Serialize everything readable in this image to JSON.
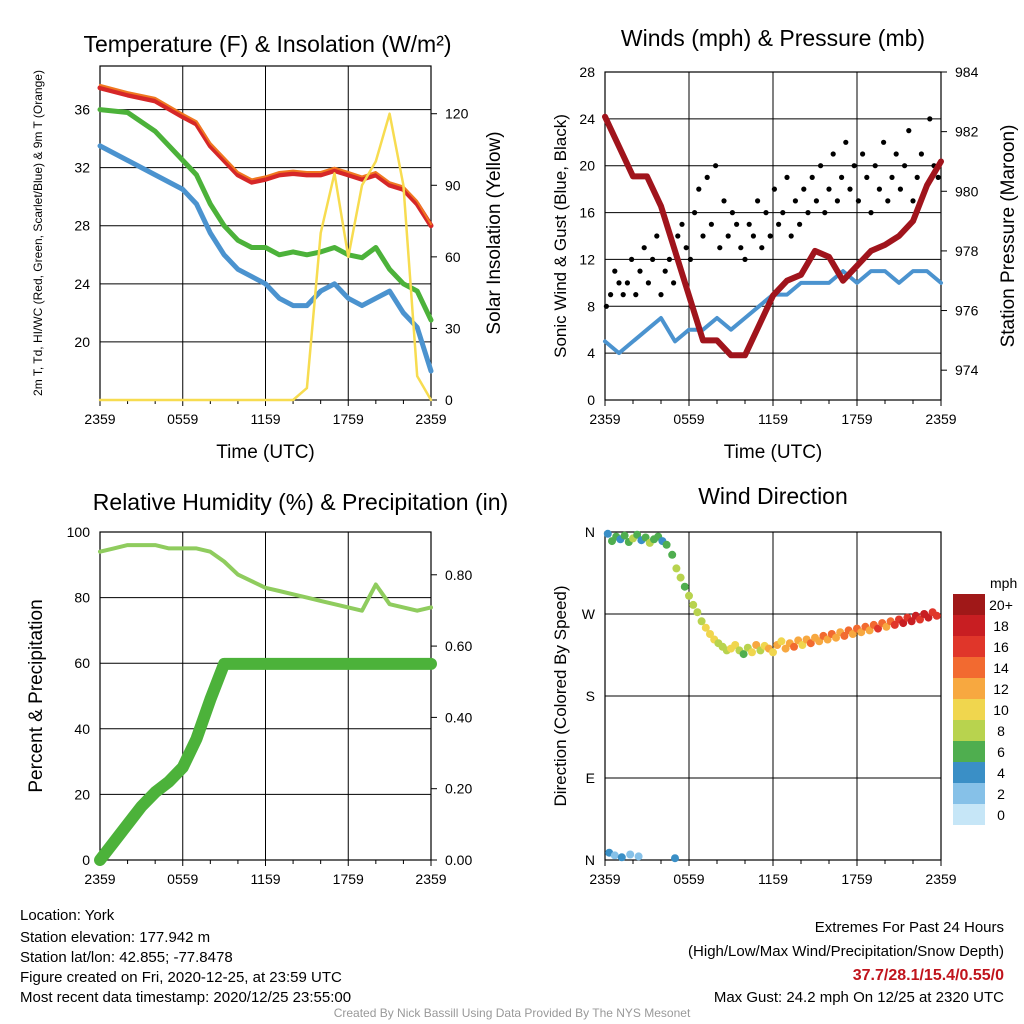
{
  "chart_data": [
    {
      "type": "line",
      "title": "Temperature (F) & Insolation (W/m²)",
      "xlabel": "Time (UTC)",
      "ylabel": "2m T, Td, HI/WC (Red, Green, Scarlet/Blue) & 9m T (Orange)",
      "y2label": "Solar Insolation (Yellow)",
      "x_ticks": [
        "2359",
        "0559",
        "1159",
        "1759",
        "2359"
      ],
      "ylim": [
        16,
        39
      ],
      "y_ticks": [
        20,
        24,
        28,
        32,
        36
      ],
      "y2lim": [
        0,
        140
      ],
      "y2_ticks": [
        0,
        30,
        60,
        90,
        120
      ],
      "x_hours": [
        0,
        2,
        4,
        6,
        7,
        8,
        9,
        10,
        11,
        12,
        13,
        14,
        15,
        16,
        17,
        18,
        19,
        20,
        21,
        22,
        23,
        24
      ],
      "series": [
        {
          "color": "#d62728",
          "axis": "left",
          "values": [
            37.5,
            37,
            36.6,
            35.5,
            35,
            33.5,
            32.5,
            31.5,
            31,
            31.2,
            31.5,
            31.6,
            31.5,
            31.5,
            31.8,
            31.5,
            31.2,
            31.5,
            30.8,
            30.5,
            29.5,
            28
          ]
        },
        {
          "color": "#f07820",
          "axis": "left",
          "values": [
            37.7,
            37.2,
            36.8,
            35.7,
            35.2,
            33.7,
            32.7,
            31.7,
            31.2,
            31.4,
            31.7,
            31.8,
            31.7,
            31.7,
            32,
            31.7,
            31.4,
            31.7,
            31,
            30.7,
            29.7,
            28.1
          ]
        },
        {
          "color": "#4cb23a",
          "axis": "left",
          "values": [
            36,
            35.8,
            34.5,
            32.5,
            31.5,
            29.5,
            28,
            27,
            26.5,
            26.5,
            26,
            26.2,
            26,
            26.2,
            26.5,
            26,
            25.8,
            26.5,
            25,
            24,
            23.5,
            21.5
          ]
        },
        {
          "color": "#4b93cf",
          "axis": "left",
          "values": [
            33.5,
            32.5,
            31.5,
            30.5,
            29.5,
            27.5,
            26,
            25,
            24.5,
            24,
            23,
            22.5,
            22.5,
            23.5,
            24,
            23,
            22.5,
            23,
            23.5,
            22,
            21,
            18
          ]
        },
        {
          "color": "#f7dc50",
          "axis": "right",
          "values": [
            0,
            0,
            0,
            0,
            0,
            0,
            0,
            0,
            0,
            0,
            0,
            0,
            5,
            70,
            95,
            60,
            90,
            100,
            120,
            90,
            10,
            0
          ]
        }
      ]
    },
    {
      "type": "line",
      "title": "Winds (mph) & Pressure (mb)",
      "xlabel": "Time (UTC)",
      "ylabel": "Sonic Wind & Gust (Blue, Black)",
      "y2label": "Station Pressure (Maroon)",
      "x_ticks": [
        "2359",
        "0559",
        "1159",
        "1759",
        "2359"
      ],
      "ylim": [
        0,
        28
      ],
      "y_ticks": [
        0,
        4,
        8,
        12,
        16,
        20,
        24,
        28
      ],
      "y2lim": [
        973,
        984
      ],
      "y2_ticks": [
        974,
        976,
        978,
        980,
        982,
        984
      ],
      "x_hours": [
        0,
        1,
        2,
        3,
        4,
        5,
        6,
        7,
        8,
        9,
        10,
        11,
        12,
        13,
        14,
        15,
        16,
        17,
        18,
        19,
        20,
        21,
        22,
        23,
        24
      ],
      "series": [
        {
          "color": "#4b93cf",
          "axis": "left",
          "values": [
            5,
            4,
            5,
            6,
            7,
            5,
            6,
            6,
            7,
            6,
            7,
            8,
            9,
            9,
            10,
            10,
            10,
            11,
            10,
            11,
            11,
            10,
            11,
            11,
            10
          ]
        },
        {
          "color": "#a0141c",
          "axis": "right",
          "values": [
            982.5,
            981.5,
            980.5,
            980.5,
            979.5,
            978,
            976.5,
            975,
            975,
            974.5,
            974.5,
            975.5,
            976.5,
            977,
            977.2,
            978,
            977.8,
            977,
            977.5,
            978,
            978.2,
            978.5,
            979,
            980.2,
            981
          ]
        }
      ],
      "gust_points": [
        [
          0.1,
          8
        ],
        [
          0.4,
          9
        ],
        [
          0.7,
          11
        ],
        [
          1.0,
          10
        ],
        [
          1.3,
          9
        ],
        [
          1.6,
          10
        ],
        [
          1.9,
          12
        ],
        [
          2.2,
          9
        ],
        [
          2.5,
          11
        ],
        [
          2.8,
          13
        ],
        [
          3.1,
          10
        ],
        [
          3.4,
          12
        ],
        [
          3.7,
          14
        ],
        [
          4.0,
          9
        ],
        [
          4.3,
          11
        ],
        [
          4.6,
          12
        ],
        [
          4.9,
          10
        ],
        [
          5.2,
          14
        ],
        [
          5.5,
          15
        ],
        [
          5.8,
          13
        ],
        [
          6.1,
          12
        ],
        [
          6.4,
          16
        ],
        [
          6.7,
          18
        ],
        [
          7.0,
          14
        ],
        [
          7.3,
          19
        ],
        [
          7.6,
          15
        ],
        [
          7.9,
          20
        ],
        [
          8.2,
          13
        ],
        [
          8.5,
          17
        ],
        [
          8.8,
          14
        ],
        [
          9.1,
          16
        ],
        [
          9.4,
          15
        ],
        [
          9.7,
          13
        ],
        [
          10.0,
          12
        ],
        [
          10.3,
          15
        ],
        [
          10.6,
          14
        ],
        [
          10.9,
          17
        ],
        [
          11.2,
          13
        ],
        [
          11.5,
          16
        ],
        [
          11.8,
          14
        ],
        [
          12.1,
          18
        ],
        [
          12.4,
          15
        ],
        [
          12.7,
          16
        ],
        [
          13.0,
          19
        ],
        [
          13.3,
          14
        ],
        [
          13.6,
          17
        ],
        [
          13.9,
          15
        ],
        [
          14.2,
          18
        ],
        [
          14.5,
          16
        ],
        [
          14.8,
          19
        ],
        [
          15.1,
          17
        ],
        [
          15.4,
          20
        ],
        [
          15.7,
          16
        ],
        [
          16.0,
          18
        ],
        [
          16.3,
          21
        ],
        [
          16.6,
          17
        ],
        [
          16.9,
          19
        ],
        [
          17.2,
          22
        ],
        [
          17.5,
          18
        ],
        [
          17.8,
          20
        ],
        [
          18.1,
          17
        ],
        [
          18.4,
          21
        ],
        [
          18.7,
          19
        ],
        [
          19.0,
          16
        ],
        [
          19.3,
          20
        ],
        [
          19.6,
          18
        ],
        [
          19.9,
          22
        ],
        [
          20.2,
          17
        ],
        [
          20.5,
          19
        ],
        [
          20.8,
          21
        ],
        [
          21.1,
          18
        ],
        [
          21.4,
          20
        ],
        [
          21.7,
          23
        ],
        [
          22.0,
          17
        ],
        [
          22.3,
          19
        ],
        [
          22.6,
          21
        ],
        [
          22.9,
          18
        ],
        [
          23.2,
          24
        ],
        [
          23.5,
          20
        ],
        [
          23.8,
          19
        ]
      ]
    },
    {
      "type": "line",
      "title": "Relative Humidity (%) & Precipitation (in)",
      "ylabel": "Percent & Precipitation",
      "x_ticks": [
        "2359",
        "0559",
        "1159",
        "1759",
        "2359"
      ],
      "ylim": [
        0,
        100
      ],
      "y_ticks": [
        0,
        20,
        40,
        60,
        80,
        100
      ],
      "y2lim": [
        0,
        0.92
      ],
      "y2_ticks": [
        "0.00",
        "0.20",
        "0.40",
        "0.60",
        "0.80"
      ],
      "x_hours": [
        0,
        1,
        2,
        3,
        4,
        5,
        6,
        7,
        8,
        9,
        10,
        11,
        12,
        13,
        14,
        15,
        16,
        17,
        18,
        19,
        20,
        21,
        22,
        23,
        24
      ],
      "series": [
        {
          "color": "#8fcc5e",
          "axis": "left",
          "values": [
            94,
            95,
            96,
            96,
            96,
            95,
            95,
            95,
            94,
            91,
            87,
            85,
            83,
            82,
            81,
            80,
            79,
            78,
            77,
            76,
            84,
            78,
            77,
            76,
            77
          ]
        },
        {
          "color": "#4cb23a",
          "axis": "right",
          "values": [
            0,
            0.05,
            0.1,
            0.15,
            0.19,
            0.22,
            0.26,
            0.34,
            0.45,
            0.55,
            0.55,
            0.55,
            0.55,
            0.55,
            0.55,
            0.55,
            0.55,
            0.55,
            0.55,
            0.55,
            0.55,
            0.55,
            0.55,
            0.55,
            0.55
          ]
        }
      ]
    },
    {
      "type": "scatter",
      "title": "Wind Direction",
      "ylabel": "Direction (Colored By Speed)",
      "x_ticks": [
        "2359",
        "0559",
        "1159",
        "1759",
        "2359"
      ],
      "y_ticks": [
        "N",
        "W",
        "S",
        "E",
        "N"
      ],
      "ylim": [
        0,
        360
      ],
      "legend_title": "mph",
      "legend_labels": [
        "20+",
        "18",
        "16",
        "14",
        "12",
        "10",
        "8",
        "6",
        "4",
        "2",
        "0"
      ],
      "legend_colors": [
        "#a01818",
        "#c81e22",
        "#e0362a",
        "#f26a30",
        "#f7a840",
        "#f0d64e",
        "#b8d34e",
        "#4fae4f",
        "#3a8fc6",
        "#86c1e8",
        "#c6e6f7"
      ],
      "points": [
        [
          0.2,
          358,
          4
        ],
        [
          0.5,
          350,
          5
        ],
        [
          0.8,
          355,
          6
        ],
        [
          1.1,
          352,
          4
        ],
        [
          1.4,
          356,
          5
        ],
        [
          1.7,
          349,
          6
        ],
        [
          2.0,
          353,
          7
        ],
        [
          2.3,
          357,
          5
        ],
        [
          2.6,
          351,
          4
        ],
        [
          2.9,
          354,
          6
        ],
        [
          3.2,
          348,
          7
        ],
        [
          3.5,
          352,
          5
        ],
        [
          3.8,
          355,
          6
        ],
        [
          4.1,
          350,
          4
        ],
        [
          4.4,
          346,
          5
        ],
        [
          4.8,
          335,
          6
        ],
        [
          5.1,
          320,
          7
        ],
        [
          5.4,
          310,
          8
        ],
        [
          5.7,
          300,
          6
        ],
        [
          6.0,
          290,
          7
        ],
        [
          6.3,
          280,
          8
        ],
        [
          6.6,
          272,
          7
        ],
        [
          6.9,
          262,
          8
        ],
        [
          7.2,
          255,
          9
        ],
        [
          7.5,
          248,
          10
        ],
        [
          7.8,
          242,
          9
        ],
        [
          8.1,
          238,
          8
        ],
        [
          8.4,
          234,
          7
        ],
        [
          8.7,
          230,
          8
        ],
        [
          9.0,
          232,
          9
        ],
        [
          9.3,
          236,
          10
        ],
        [
          9.6,
          230,
          7
        ],
        [
          9.9,
          226,
          6
        ],
        [
          10.2,
          233,
          8
        ],
        [
          10.5,
          228,
          9
        ],
        [
          10.8,
          236,
          11
        ],
        [
          11.1,
          230,
          8
        ],
        [
          11.4,
          235,
          10
        ],
        [
          11.7,
          232,
          12
        ],
        [
          12.0,
          228,
          9
        ],
        [
          12.3,
          236,
          11
        ],
        [
          12.6,
          240,
          10
        ],
        [
          12.9,
          232,
          12
        ],
        [
          13.2,
          238,
          11
        ],
        [
          13.5,
          234,
          13
        ],
        [
          13.8,
          241,
          12
        ],
        [
          14.1,
          236,
          10
        ],
        [
          14.4,
          242,
          11
        ],
        [
          14.7,
          238,
          13
        ],
        [
          15.0,
          244,
          12
        ],
        [
          15.3,
          240,
          11
        ],
        [
          15.6,
          246,
          14
        ],
        [
          15.9,
          242,
          12
        ],
        [
          16.2,
          248,
          13
        ],
        [
          16.5,
          244,
          11
        ],
        [
          16.8,
          250,
          12
        ],
        [
          17.1,
          246,
          14
        ],
        [
          17.4,
          252,
          13
        ],
        [
          17.7,
          248,
          12
        ],
        [
          18.0,
          254,
          14
        ],
        [
          18.3,
          250,
          11
        ],
        [
          18.6,
          256,
          13
        ],
        [
          18.9,
          252,
          12
        ],
        [
          19.2,
          258,
          14
        ],
        [
          19.5,
          254,
          15
        ],
        [
          19.8,
          260,
          13
        ],
        [
          20.1,
          256,
          12
        ],
        [
          20.4,
          262,
          14
        ],
        [
          20.7,
          258,
          16
        ],
        [
          21.0,
          264,
          15
        ],
        [
          21.3,
          260,
          17
        ],
        [
          21.6,
          266,
          16
        ],
        [
          21.9,
          262,
          18
        ],
        [
          22.2,
          268,
          17
        ],
        [
          22.5,
          264,
          16
        ],
        [
          22.8,
          270,
          18
        ],
        [
          23.1,
          266,
          17
        ],
        [
          23.4,
          272,
          16
        ],
        [
          23.7,
          268,
          15
        ],
        [
          0.3,
          8,
          3
        ],
        [
          0.7,
          5,
          2
        ],
        [
          1.2,
          3,
          4
        ],
        [
          1.8,
          6,
          2
        ],
        [
          2.4,
          4,
          1
        ],
        [
          5.0,
          2,
          4
        ]
      ]
    }
  ],
  "info": {
    "location": "Location: York",
    "elevation": "Station elevation: 177.942 m",
    "latlon": "Station lat/lon: 42.855; -77.8478",
    "created": "Figure created on Fri, 2020-12-25, at 23:59 UTC",
    "recent": "Most recent data timestamp: 2020/12/25 23:55:00"
  },
  "extremes": {
    "heading": "Extremes For Past 24 Hours",
    "subheading": "(High/Low/Max Wind/Precipitation/Snow Depth)",
    "values": "37.7/28.1/15.4/0.55/0",
    "max_gust": "Max Gust: 24.2 mph On 12/25 at 2320 UTC"
  },
  "credit": "Created By Nick Bassill Using Data Provided By The NYS Mesonet",
  "colors": {
    "grid": "#000000",
    "highlight": "#c0141c"
  }
}
